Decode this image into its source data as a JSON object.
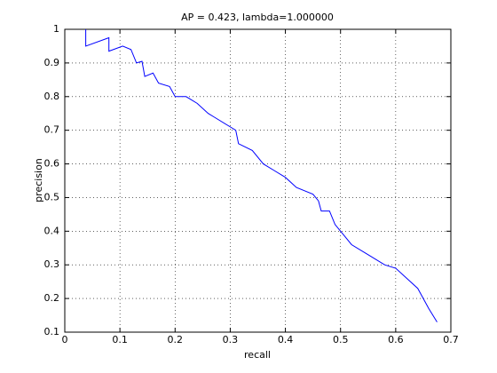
{
  "chart_data": {
    "type": "line",
    "title": "AP = 0.423, lambda=1.000000",
    "xlabel": "recall",
    "ylabel": "precision",
    "x": [
      0.038,
      0.038,
      0.08,
      0.08,
      0.105,
      0.12,
      0.13,
      0.14,
      0.145,
      0.16,
      0.17,
      0.19,
      0.2,
      0.22,
      0.24,
      0.26,
      0.27,
      0.3,
      0.31,
      0.315,
      0.34,
      0.36,
      0.38,
      0.4,
      0.42,
      0.45,
      0.46,
      0.465,
      0.48,
      0.49,
      0.5,
      0.505,
      0.52,
      0.55,
      0.58,
      0.6,
      0.62,
      0.64,
      0.65,
      0.66,
      0.675
    ],
    "values": [
      1.0,
      0.95,
      0.975,
      0.935,
      0.95,
      0.94,
      0.9,
      0.905,
      0.86,
      0.87,
      0.84,
      0.83,
      0.8,
      0.8,
      0.78,
      0.75,
      0.74,
      0.71,
      0.7,
      0.66,
      0.64,
      0.6,
      0.58,
      0.56,
      0.53,
      0.51,
      0.49,
      0.46,
      0.46,
      0.42,
      0.4,
      0.39,
      0.36,
      0.33,
      0.3,
      0.29,
      0.26,
      0.23,
      0.2,
      0.17,
      0.13
    ],
    "color": "#0000ff",
    "xlim": [
      0,
      0.7
    ],
    "xticks": [
      0,
      0.1,
      0.2,
      0.3,
      0.4,
      0.5,
      0.6,
      0.7
    ],
    "ylim": [
      0.1,
      1
    ],
    "yticks": [
      0.1,
      0.2,
      0.3,
      0.4,
      0.5,
      0.6,
      0.7,
      0.8,
      0.9,
      1
    ],
    "grid": true
  }
}
